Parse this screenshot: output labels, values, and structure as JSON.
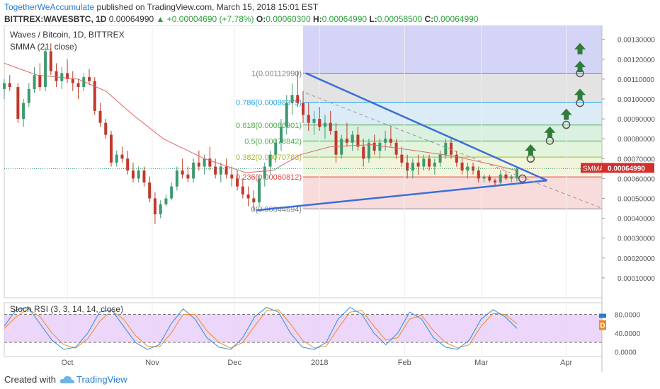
{
  "header": {
    "author": "TogetherWeAccumulate",
    "published": "published on TradingView.com, March 15, 2018 15:01 EST",
    "symbol": "BITTREX:WAVESBTC, 1D",
    "last": "0.00064990",
    "change": "+0.00004690 (+7.78%)",
    "open_label": "O:",
    "open": "0.00060300",
    "high_label": "H:",
    "high": "0.00064990",
    "low_label": "L:",
    "low": "0.00058500",
    "close_label": "C:",
    "close": "0.00064990"
  },
  "legend": {
    "title": "Waves / Bitcoin, 1D, BITTREX",
    "indicator": "SMMA (21, close)",
    "rsi": "Stoch RSI (3, 3, 14, 14, close)"
  },
  "price_axis": {
    "ticks": [
      "0.00130000",
      "0.00120000",
      "0.00110000",
      "0.00100000",
      "0.00090000",
      "0.00080000",
      "0.00070000",
      "0.00060000",
      "0.00050000",
      "0.00040000",
      "0.00030000",
      "0.00020000",
      "0.00010000"
    ],
    "smma_tag": "SMMA",
    "last_tag": "0.00064990"
  },
  "rsi_axis": {
    "ticks": [
      "80.0000",
      "40.0000",
      "0.0000"
    ],
    "badge": "D"
  },
  "time_axis": [
    "Oct",
    "Nov",
    "Dec",
    "2018",
    "Feb",
    "Mar",
    "Apr"
  ],
  "chart_data": {
    "type": "candlestick",
    "title": "Waves / Bitcoin, 1D, BITTREX",
    "ylim": [
      0.0,
      0.00137
    ],
    "x_range": [
      "2017-09-08",
      "2018-04-14"
    ],
    "fib_levels": [
      {
        "label": "1(0.00112990)",
        "value": 0.0011299,
        "color": "#808080",
        "fill": "#d9d9d9"
      },
      {
        "label": "0.786(0.00098375)",
        "value": 0.00098375,
        "color": "#2aa3e0",
        "fill": "#cfe6f3"
      },
      {
        "label": "0.618(0.00086901)",
        "value": 0.00086901,
        "color": "#4caf50",
        "fill": "#cdebd6"
      },
      {
        "label": "0.5(0.00078842)",
        "value": 0.00078842,
        "color": "#4caf50",
        "fill": "#d8f0d0"
      },
      {
        "label": "0.382(0.00070783)",
        "value": 0.00070783,
        "color": "#a5b92f",
        "fill": "#edf2cf"
      },
      {
        "label": "0.236(0.00060812)",
        "value": 0.00060812,
        "color": "#e04848",
        "fill": "#f5d0d0"
      },
      {
        "label": "0(0.00044694)",
        "value": 0.00044694,
        "color": "#808080",
        "fill": ""
      }
    ],
    "fib_start": "2017-12-26",
    "fib_end": "2018-04-14",
    "top_band_fill": "#cfcff5",
    "upper_trendline": [
      [
        "2017-12-27",
        0.00113
      ],
      [
        "2018-03-25",
        0.00059
      ]
    ],
    "lower_trendline": [
      [
        "2017-12-09",
        0.00044
      ],
      [
        "2018-03-25",
        0.00059
      ]
    ],
    "projection_dashed": [
      [
        "2017-12-27",
        0.00103
      ],
      [
        "2018-04-14",
        0.00045
      ]
    ],
    "circles": [
      [
        "2018-03-16",
        0.0006
      ],
      [
        "2018-03-19",
        0.0007
      ],
      [
        "2018-03-26",
        0.00079
      ],
      [
        "2018-04-01",
        0.00087
      ],
      [
        "2018-04-06",
        0.00098
      ],
      [
        "2018-04-06",
        0.00113
      ]
    ],
    "arrows": [
      [
        "2018-03-19",
        0.00074
      ],
      [
        "2018-03-26",
        0.00083
      ],
      [
        "2018-04-01",
        0.00092
      ],
      [
        "2018-04-06",
        0.00102
      ],
      [
        "2018-04-06",
        0.00116
      ],
      [
        "2018-04-06",
        0.00125
      ]
    ],
    "last_price": 0.0006499,
    "candles": [
      [
        "2017-09-08",
        0.00105,
        0.0011,
        0.001,
        0.00108
      ],
      [
        "2017-09-10",
        0.00108,
        0.00112,
        0.00104,
        0.00106
      ],
      [
        "2017-09-13",
        0.00106,
        0.00108,
        0.00088,
        0.0009
      ],
      [
        "2017-09-15",
        0.0009,
        0.001,
        0.00086,
        0.00098
      ],
      [
        "2017-09-17",
        0.00098,
        0.00108,
        0.00096,
        0.00105
      ],
      [
        "2017-09-19",
        0.00105,
        0.00116,
        0.00103,
        0.00112
      ],
      [
        "2017-09-21",
        0.00112,
        0.00118,
        0.00104,
        0.00106
      ],
      [
        "2017-09-23",
        0.00106,
        0.00126,
        0.00104,
        0.00124
      ],
      [
        "2017-09-25",
        0.00124,
        0.00128,
        0.00112,
        0.00114
      ],
      [
        "2017-09-27",
        0.00114,
        0.00118,
        0.00106,
        0.00109
      ],
      [
        "2017-09-29",
        0.00109,
        0.00116,
        0.00105,
        0.00113
      ],
      [
        "2017-10-01",
        0.00113,
        0.0012,
        0.00108,
        0.0011
      ],
      [
        "2017-10-03",
        0.0011,
        0.00114,
        0.00104,
        0.00108
      ],
      [
        "2017-10-05",
        0.00108,
        0.0011,
        0.001,
        0.00106
      ],
      [
        "2017-10-07",
        0.00106,
        0.00113,
        0.00104,
        0.00111
      ],
      [
        "2017-10-09",
        0.00111,
        0.00115,
        0.00107,
        0.00109
      ],
      [
        "2017-10-11",
        0.00109,
        0.00111,
        0.00092,
        0.00094
      ],
      [
        "2017-10-13",
        0.00094,
        0.00098,
        0.00086,
        0.00088
      ],
      [
        "2017-10-15",
        0.00088,
        0.0009,
        0.0008,
        0.00082
      ],
      [
        "2017-10-17",
        0.00082,
        0.00084,
        0.00066,
        0.00068
      ],
      [
        "2017-10-19",
        0.00068,
        0.00074,
        0.00066,
        0.00072
      ],
      [
        "2017-10-21",
        0.00072,
        0.00076,
        0.00068,
        0.0007
      ],
      [
        "2017-10-23",
        0.0007,
        0.00074,
        0.00062,
        0.00064
      ],
      [
        "2017-10-25",
        0.00064,
        0.00068,
        0.00058,
        0.0006
      ],
      [
        "2017-10-27",
        0.0006,
        0.00066,
        0.00058,
        0.00064
      ],
      [
        "2017-10-29",
        0.00064,
        0.00066,
        0.00056,
        0.00058
      ],
      [
        "2017-10-31",
        0.00058,
        0.00061,
        0.00048,
        0.0005
      ],
      [
        "2017-11-02",
        0.0005,
        0.00053,
        0.00037,
        0.00042
      ],
      [
        "2017-11-04",
        0.00042,
        0.00049,
        0.0004,
        0.00047
      ],
      [
        "2017-11-06",
        0.00047,
        0.00052,
        0.00046,
        0.0005
      ],
      [
        "2017-11-08",
        0.0005,
        0.00058,
        0.00049,
        0.00056
      ],
      [
        "2017-11-10",
        0.00056,
        0.00066,
        0.00054,
        0.00064
      ],
      [
        "2017-11-12",
        0.00064,
        0.0007,
        0.0006,
        0.00062
      ],
      [
        "2017-11-14",
        0.00062,
        0.00066,
        0.00058,
        0.0006
      ],
      [
        "2017-11-16",
        0.0006,
        0.0007,
        0.00058,
        0.00068
      ],
      [
        "2017-11-18",
        0.00068,
        0.00074,
        0.00064,
        0.00066
      ],
      [
        "2017-11-20",
        0.00066,
        0.00072,
        0.00062,
        0.0007
      ],
      [
        "2017-11-22",
        0.0007,
        0.00076,
        0.00064,
        0.00066
      ],
      [
        "2017-11-24",
        0.00066,
        0.0007,
        0.0006,
        0.00062
      ],
      [
        "2017-11-26",
        0.00062,
        0.00068,
        0.00058,
        0.00066
      ],
      [
        "2017-11-28",
        0.00066,
        0.0007,
        0.0006,
        0.00062
      ],
      [
        "2017-11-30",
        0.00062,
        0.00066,
        0.00056,
        0.0006
      ],
      [
        "2017-12-02",
        0.0006,
        0.00064,
        0.00054,
        0.00056
      ],
      [
        "2017-12-04",
        0.00056,
        0.0006,
        0.0005,
        0.00052
      ],
      [
        "2017-12-06",
        0.00052,
        0.00056,
        0.00046,
        0.0005
      ],
      [
        "2017-12-08",
        0.0005,
        0.00054,
        0.00044,
        0.00048
      ],
      [
        "2017-12-10",
        0.00048,
        0.00062,
        0.00046,
        0.0006
      ],
      [
        "2017-12-12",
        0.0006,
        0.00068,
        0.00056,
        0.00066
      ],
      [
        "2017-12-14",
        0.00066,
        0.00074,
        0.00062,
        0.00072
      ],
      [
        "2017-12-16",
        0.00072,
        0.0008,
        0.00068,
        0.00078
      ],
      [
        "2017-12-18",
        0.00078,
        0.0009,
        0.00074,
        0.00086
      ],
      [
        "2017-12-20",
        0.00086,
        0.00102,
        0.00082,
        0.00098
      ],
      [
        "2017-12-22",
        0.00098,
        0.00108,
        0.00092,
        0.00102
      ],
      [
        "2017-12-24",
        0.00102,
        0.00114,
        0.00096,
        0.00098
      ],
      [
        "2017-12-26",
        0.00098,
        0.00104,
        0.00088,
        0.00092
      ],
      [
        "2017-12-28",
        0.00092,
        0.00098,
        0.00084,
        0.00088
      ],
      [
        "2017-12-30",
        0.00088,
        0.00094,
        0.00082,
        0.0009
      ],
      [
        "2018-01-01",
        0.0009,
        0.00096,
        0.00084,
        0.00086
      ],
      [
        "2018-01-03",
        0.00086,
        0.00092,
        0.0008,
        0.00088
      ],
      [
        "2018-01-05",
        0.00088,
        0.00094,
        0.00082,
        0.00084
      ],
      [
        "2018-01-07",
        0.00084,
        0.00088,
        0.00068,
        0.00072
      ],
      [
        "2018-01-09",
        0.00072,
        0.00082,
        0.0007,
        0.0008
      ],
      [
        "2018-01-11",
        0.0008,
        0.00088,
        0.00076,
        0.00078
      ],
      [
        "2018-01-13",
        0.00078,
        0.00084,
        0.00074,
        0.00082
      ],
      [
        "2018-01-15",
        0.00082,
        0.00086,
        0.00074,
        0.00076
      ],
      [
        "2018-01-17",
        0.00076,
        0.0008,
        0.00066,
        0.0007
      ],
      [
        "2018-01-19",
        0.0007,
        0.0008,
        0.00068,
        0.00078
      ],
      [
        "2018-01-21",
        0.00078,
        0.00082,
        0.00072,
        0.00074
      ],
      [
        "2018-01-23",
        0.00074,
        0.0008,
        0.0007,
        0.00078
      ],
      [
        "2018-01-25",
        0.00078,
        0.00084,
        0.00074,
        0.0008
      ],
      [
        "2018-01-27",
        0.0008,
        0.00086,
        0.00076,
        0.00078
      ],
      [
        "2018-01-29",
        0.00078,
        0.0008,
        0.0007,
        0.00072
      ],
      [
        "2018-01-31",
        0.00072,
        0.00076,
        0.00066,
        0.00068
      ],
      [
        "2018-02-02",
        0.00068,
        0.00072,
        0.0006,
        0.00064
      ],
      [
        "2018-02-04",
        0.00064,
        0.0007,
        0.0006,
        0.00068
      ],
      [
        "2018-02-06",
        0.00068,
        0.00072,
        0.00062,
        0.00066
      ],
      [
        "2018-02-08",
        0.00066,
        0.00072,
        0.00064,
        0.0007
      ],
      [
        "2018-02-10",
        0.0007,
        0.00072,
        0.00064,
        0.00066
      ],
      [
        "2018-02-12",
        0.00066,
        0.0007,
        0.00062,
        0.00068
      ],
      [
        "2018-02-14",
        0.00068,
        0.00074,
        0.00066,
        0.00072
      ],
      [
        "2018-02-16",
        0.00072,
        0.0008,
        0.0007,
        0.00078
      ],
      [
        "2018-02-18",
        0.00078,
        0.0008,
        0.0007,
        0.00072
      ],
      [
        "2018-02-20",
        0.00072,
        0.00074,
        0.00066,
        0.00068
      ],
      [
        "2018-02-22",
        0.00068,
        0.0007,
        0.00062,
        0.00064
      ],
      [
        "2018-02-24",
        0.00064,
        0.00068,
        0.0006,
        0.00066
      ],
      [
        "2018-02-26",
        0.00066,
        0.00068,
        0.00062,
        0.00064
      ],
      [
        "2018-02-28",
        0.00064,
        0.00066,
        0.00058,
        0.0006
      ],
      [
        "2018-03-02",
        0.0006,
        0.00062,
        0.00058,
        0.00061
      ],
      [
        "2018-03-04",
        0.00061,
        0.00062,
        0.00058,
        0.00059
      ],
      [
        "2018-03-06",
        0.00059,
        0.0006,
        0.00056,
        0.00058
      ],
      [
        "2018-03-08",
        0.00058,
        0.00064,
        0.00057,
        0.00062
      ],
      [
        "2018-03-10",
        0.00062,
        0.00064,
        0.00059,
        0.0006
      ],
      [
        "2018-03-12",
        0.0006,
        0.00062,
        0.00058,
        0.00061
      ],
      [
        "2018-03-14",
        0.0006,
        0.00065,
        0.000585,
        0.00065
      ]
    ],
    "smma": [
      [
        "2017-09-08",
        0.00118
      ],
      [
        "2017-09-20",
        0.00112
      ],
      [
        "2017-10-05",
        0.0011
      ],
      [
        "2017-10-15",
        0.00104
      ],
      [
        "2017-10-25",
        0.00092
      ],
      [
        "2017-11-05",
        0.0008
      ],
      [
        "2017-11-20",
        0.0007
      ],
      [
        "2017-12-05",
        0.00063
      ],
      [
        "2017-12-15",
        0.00064
      ],
      [
        "2017-12-25",
        0.00072
      ],
      [
        "2018-01-05",
        0.00076
      ],
      [
        "2018-01-20",
        0.00077
      ],
      [
        "2018-02-05",
        0.00074
      ],
      [
        "2018-02-20",
        0.00071
      ],
      [
        "2018-03-05",
        0.00067
      ],
      [
        "2018-03-14",
        0.00064
      ]
    ],
    "stoch_rsi": {
      "ylim": [
        -10,
        105
      ],
      "bands": [
        80,
        20
      ],
      "k": [
        [
          0,
          55
        ],
        [
          4,
          90
        ],
        [
          8,
          95
        ],
        [
          12,
          60
        ],
        [
          16,
          25
        ],
        [
          20,
          5
        ],
        [
          24,
          10
        ],
        [
          28,
          40
        ],
        [
          32,
          85
        ],
        [
          36,
          90
        ],
        [
          40,
          55
        ],
        [
          44,
          20
        ],
        [
          48,
          5
        ],
        [
          52,
          15
        ],
        [
          56,
          60
        ],
        [
          60,
          92
        ],
        [
          64,
          70
        ],
        [
          68,
          30
        ],
        [
          72,
          10
        ],
        [
          76,
          5
        ],
        [
          80,
          30
        ],
        [
          84,
          75
        ],
        [
          88,
          95
        ],
        [
          92,
          85
        ],
        [
          96,
          40
        ],
        [
          100,
          10
        ],
        [
          104,
          5
        ],
        [
          108,
          20
        ],
        [
          112,
          70
        ],
        [
          116,
          95
        ],
        [
          120,
          80
        ],
        [
          124,
          40
        ],
        [
          128,
          15
        ],
        [
          132,
          40
        ],
        [
          136,
          85
        ],
        [
          140,
          70
        ],
        [
          144,
          30
        ],
        [
          148,
          10
        ],
        [
          152,
          5
        ],
        [
          156,
          25
        ],
        [
          160,
          70
        ],
        [
          164,
          90
        ],
        [
          168,
          75
        ],
        [
          172,
          50
        ]
      ],
      "d": [
        [
          0,
          50
        ],
        [
          4,
          75
        ],
        [
          8,
          92
        ],
        [
          12,
          75
        ],
        [
          16,
          40
        ],
        [
          20,
          15
        ],
        [
          24,
          8
        ],
        [
          28,
          28
        ],
        [
          32,
          65
        ],
        [
          36,
          88
        ],
        [
          40,
          70
        ],
        [
          44,
          35
        ],
        [
          48,
          12
        ],
        [
          52,
          10
        ],
        [
          56,
          40
        ],
        [
          60,
          80
        ],
        [
          64,
          80
        ],
        [
          68,
          45
        ],
        [
          72,
          20
        ],
        [
          76,
          8
        ],
        [
          80,
          20
        ],
        [
          84,
          55
        ],
        [
          88,
          88
        ],
        [
          92,
          90
        ],
        [
          96,
          60
        ],
        [
          100,
          25
        ],
        [
          104,
          8
        ],
        [
          108,
          12
        ],
        [
          112,
          50
        ],
        [
          116,
          85
        ],
        [
          120,
          88
        ],
        [
          124,
          55
        ],
        [
          128,
          25
        ],
        [
          132,
          30
        ],
        [
          136,
          70
        ],
        [
          140,
          78
        ],
        [
          144,
          45
        ],
        [
          148,
          20
        ],
        [
          152,
          8
        ],
        [
          156,
          15
        ],
        [
          160,
          55
        ],
        [
          164,
          82
        ],
        [
          168,
          80
        ],
        [
          172,
          60
        ]
      ]
    },
    "time_ticks": [
      {
        "label": "Oct",
        "date": "2017-10-01"
      },
      {
        "label": "Nov",
        "date": "2017-11-01"
      },
      {
        "label": "Dec",
        "date": "2017-12-01"
      },
      {
        "label": "2018",
        "date": "2018-01-01"
      },
      {
        "label": "Feb",
        "date": "2018-02-01"
      },
      {
        "label": "Mar",
        "date": "2018-03-01"
      },
      {
        "label": "Apr",
        "date": "2018-04-01"
      }
    ]
  },
  "footer": {
    "created": "Created with",
    "brand": "TradingView"
  },
  "colors": {
    "up": "#3d9970",
    "down": "#c0392b",
    "smma": "#e06666",
    "trend": "#3a6fd8",
    "k_line": "#2b8fd8",
    "d_line": "#f08a24",
    "rsi_band": "#e7ccf7",
    "accent": "#2b7bcf"
  }
}
